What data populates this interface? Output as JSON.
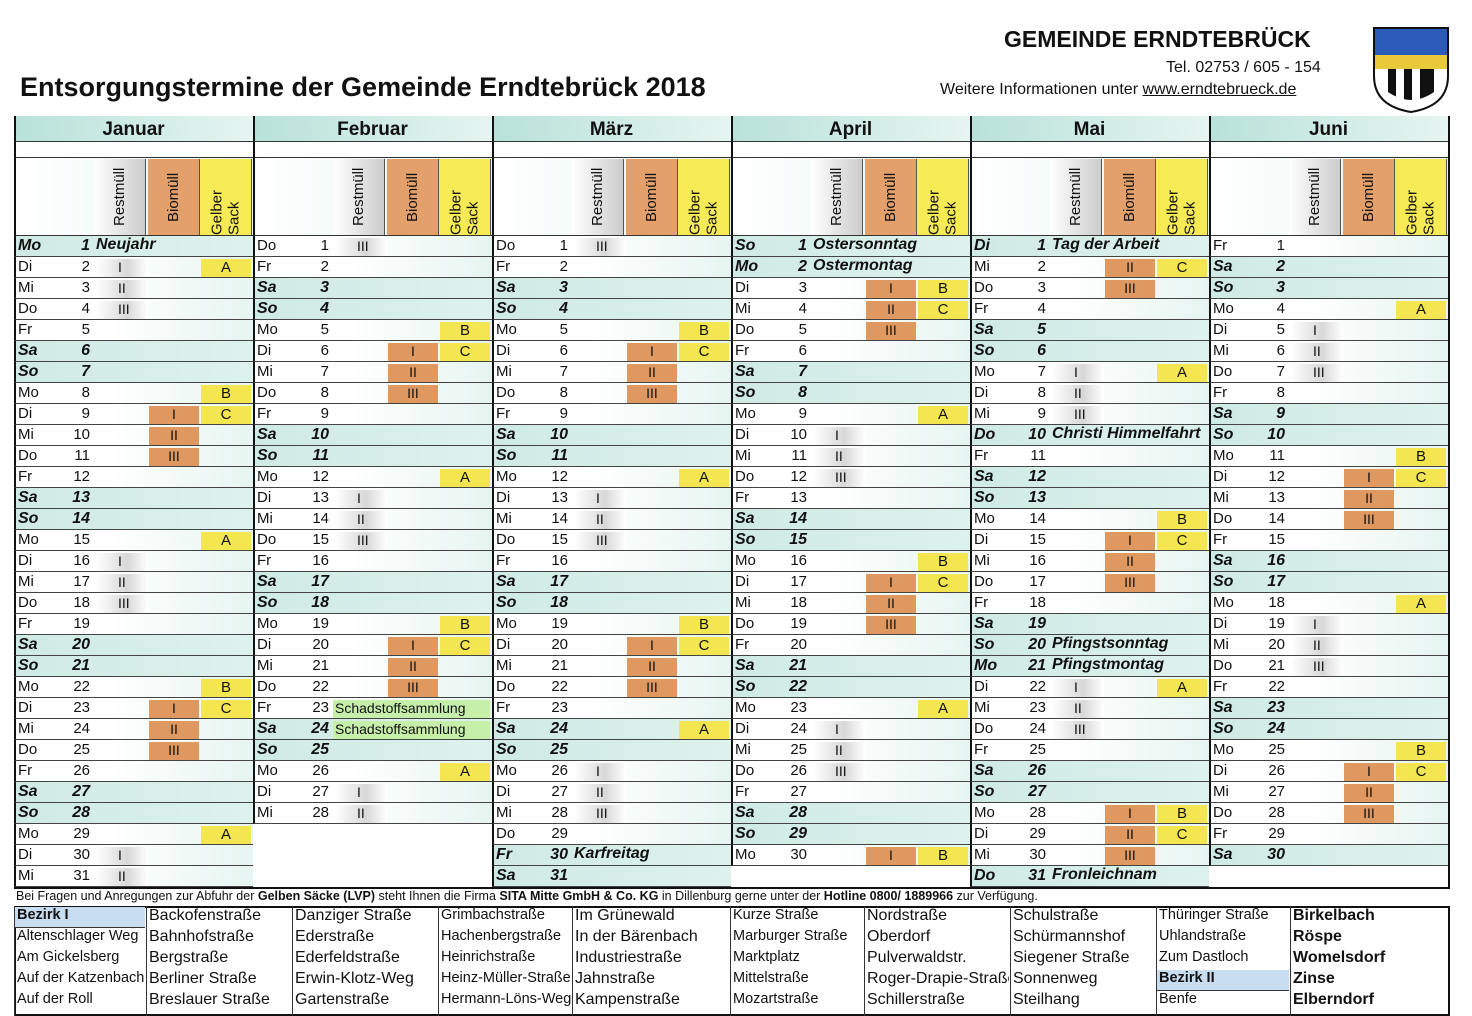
{
  "header": {
    "municipality": "GEMEINDE ERNDTEBRÜCK",
    "phone": "Tel. 02753 / 605 - 154",
    "info": "Weitere Informationen unter ",
    "website": "www.erndtebrueck.de"
  },
  "title": "Entsorgungstermine der Gemeinde Erndtebrück 2018",
  "column_headers": [
    "Restmüll",
    "Biomüll",
    "Gelber Sack"
  ],
  "months": [
    {
      "name": "Januar",
      "days": [
        [
          "Mo",
          1,
          null,
          null,
          null,
          "Neujahr"
        ],
        [
          "Di",
          2,
          "I",
          null,
          "A"
        ],
        [
          "Mi",
          3,
          "II"
        ],
        [
          "Do",
          4,
          "III"
        ],
        [
          "Fr",
          5
        ],
        [
          "Sa",
          6
        ],
        [
          "So",
          7
        ],
        [
          "Mo",
          8,
          null,
          null,
          "B"
        ],
        [
          "Di",
          9,
          null,
          "I",
          "C"
        ],
        [
          "Mi",
          10,
          null,
          "II"
        ],
        [
          "Do",
          11,
          null,
          "III"
        ],
        [
          "Fr",
          12
        ],
        [
          "Sa",
          13
        ],
        [
          "So",
          14
        ],
        [
          "Mo",
          15,
          null,
          null,
          "A"
        ],
        [
          "Di",
          16,
          "I"
        ],
        [
          "Mi",
          17,
          "II"
        ],
        [
          "Do",
          18,
          "III"
        ],
        [
          "Fr",
          19
        ],
        [
          "Sa",
          20
        ],
        [
          "So",
          21
        ],
        [
          "Mo",
          22,
          null,
          null,
          "B"
        ],
        [
          "Di",
          23,
          null,
          "I",
          "C"
        ],
        [
          "Mi",
          24,
          null,
          "II"
        ],
        [
          "Do",
          25,
          null,
          "III"
        ],
        [
          "Fr",
          26
        ],
        [
          "Sa",
          27
        ],
        [
          "So",
          28
        ],
        [
          "Mo",
          29,
          null,
          null,
          "A"
        ],
        [
          "Di",
          30,
          "I"
        ],
        [
          "Mi",
          31,
          "II"
        ]
      ]
    },
    {
      "name": "Februar",
      "days": [
        [
          "Do",
          1,
          "III"
        ],
        [
          "Fr",
          2
        ],
        [
          "Sa",
          3
        ],
        [
          "So",
          4
        ],
        [
          "Mo",
          5,
          null,
          null,
          "B"
        ],
        [
          "Di",
          6,
          null,
          "I",
          "C"
        ],
        [
          "Mi",
          7,
          null,
          "II"
        ],
        [
          "Do",
          8,
          null,
          "III"
        ],
        [
          "Fr",
          9
        ],
        [
          "Sa",
          10
        ],
        [
          "So",
          11
        ],
        [
          "Mo",
          12,
          null,
          null,
          "A"
        ],
        [
          "Di",
          13,
          "I"
        ],
        [
          "Mi",
          14,
          "II"
        ],
        [
          "Do",
          15,
          "III"
        ],
        [
          "Fr",
          16
        ],
        [
          "Sa",
          17
        ],
        [
          "So",
          18
        ],
        [
          "Mo",
          19,
          null,
          null,
          "B"
        ],
        [
          "Di",
          20,
          null,
          "I",
          "C"
        ],
        [
          "Mi",
          21,
          null,
          "II"
        ],
        [
          "Do",
          22,
          null,
          "III"
        ],
        [
          "Fr",
          23,
          null,
          null,
          null,
          null,
          "Schadstoffsammlung"
        ],
        [
          "Sa",
          24,
          null,
          null,
          null,
          null,
          "Schadstoffsammlung"
        ],
        [
          "So",
          25
        ],
        [
          "Mo",
          26,
          null,
          null,
          "A"
        ],
        [
          "Di",
          27,
          "I"
        ],
        [
          "Mi",
          28,
          "II"
        ]
      ]
    },
    {
      "name": "März",
      "days": [
        [
          "Do",
          1,
          "III"
        ],
        [
          "Fr",
          2
        ],
        [
          "Sa",
          3
        ],
        [
          "So",
          4
        ],
        [
          "Mo",
          5,
          null,
          null,
          "B"
        ],
        [
          "Di",
          6,
          null,
          "I",
          "C"
        ],
        [
          "Mi",
          7,
          null,
          "II"
        ],
        [
          "Do",
          8,
          null,
          "III"
        ],
        [
          "Fr",
          9
        ],
        [
          "Sa",
          10
        ],
        [
          "So",
          11
        ],
        [
          "Mo",
          12,
          null,
          null,
          "A"
        ],
        [
          "Di",
          13,
          "I"
        ],
        [
          "Mi",
          14,
          "II"
        ],
        [
          "Do",
          15,
          "III"
        ],
        [
          "Fr",
          16
        ],
        [
          "Sa",
          17
        ],
        [
          "So",
          18
        ],
        [
          "Mo",
          19,
          null,
          null,
          "B"
        ],
        [
          "Di",
          20,
          null,
          "I",
          "C"
        ],
        [
          "Mi",
          21,
          null,
          "II"
        ],
        [
          "Do",
          22,
          null,
          "III"
        ],
        [
          "Fr",
          23
        ],
        [
          "Sa",
          24,
          null,
          null,
          "A"
        ],
        [
          "So",
          25
        ],
        [
          "Mo",
          26,
          "I"
        ],
        [
          "Di",
          27,
          "II"
        ],
        [
          "Mi",
          28,
          "III"
        ],
        [
          "Do",
          29
        ],
        [
          "Fr",
          30,
          null,
          null,
          null,
          "Karfreitag"
        ],
        [
          "Sa",
          31
        ]
      ]
    },
    {
      "name": "April",
      "days": [
        [
          "So",
          1,
          null,
          null,
          null,
          "Ostersonntag"
        ],
        [
          "Mo",
          2,
          null,
          null,
          null,
          "Ostermontag"
        ],
        [
          "Di",
          3,
          null,
          "I",
          "B"
        ],
        [
          "Mi",
          4,
          null,
          "II",
          "C"
        ],
        [
          "Do",
          5,
          null,
          "III"
        ],
        [
          "Fr",
          6
        ],
        [
          "Sa",
          7
        ],
        [
          "So",
          8
        ],
        [
          "Mo",
          9,
          null,
          null,
          "A"
        ],
        [
          "Di",
          10,
          "I"
        ],
        [
          "Mi",
          11,
          "II"
        ],
        [
          "Do",
          12,
          "III"
        ],
        [
          "Fr",
          13
        ],
        [
          "Sa",
          14
        ],
        [
          "So",
          15
        ],
        [
          "Mo",
          16,
          null,
          null,
          "B"
        ],
        [
          "Di",
          17,
          null,
          "I",
          "C"
        ],
        [
          "Mi",
          18,
          null,
          "II"
        ],
        [
          "Do",
          19,
          null,
          "III"
        ],
        [
          "Fr",
          20
        ],
        [
          "Sa",
          21
        ],
        [
          "So",
          22
        ],
        [
          "Mo",
          23,
          null,
          null,
          "A"
        ],
        [
          "Di",
          24,
          "I"
        ],
        [
          "Mi",
          25,
          "II"
        ],
        [
          "Do",
          26,
          "III"
        ],
        [
          "Fr",
          27
        ],
        [
          "Sa",
          28
        ],
        [
          "So",
          29
        ],
        [
          "Mo",
          30,
          null,
          "I",
          "B"
        ]
      ]
    },
    {
      "name": "Mai",
      "days": [
        [
          "Di",
          1,
          null,
          null,
          null,
          "Tag der Arbeit"
        ],
        [
          "Mi",
          2,
          null,
          "II",
          "C"
        ],
        [
          "Do",
          3,
          null,
          "III"
        ],
        [
          "Fr",
          4
        ],
        [
          "Sa",
          5
        ],
        [
          "So",
          6
        ],
        [
          "Mo",
          7,
          "I",
          null,
          "A"
        ],
        [
          "Di",
          8,
          "II"
        ],
        [
          "Mi",
          9,
          "III"
        ],
        [
          "Do",
          10,
          null,
          null,
          null,
          "Christi Himmelfahrt"
        ],
        [
          "Fr",
          11
        ],
        [
          "Sa",
          12
        ],
        [
          "So",
          13
        ],
        [
          "Mo",
          14,
          null,
          null,
          "B"
        ],
        [
          "Di",
          15,
          null,
          "I",
          "C"
        ],
        [
          "Mi",
          16,
          null,
          "II"
        ],
        [
          "Do",
          17,
          null,
          "III"
        ],
        [
          "Fr",
          18
        ],
        [
          "Sa",
          19
        ],
        [
          "So",
          20,
          null,
          null,
          null,
          "Pfingstsonntag"
        ],
        [
          "Mo",
          21,
          null,
          null,
          null,
          "Pfingstmontag"
        ],
        [
          "Di",
          22,
          "I",
          null,
          "A"
        ],
        [
          "Mi",
          23,
          "II"
        ],
        [
          "Do",
          24,
          "III"
        ],
        [
          "Fr",
          25
        ],
        [
          "Sa",
          26
        ],
        [
          "So",
          27
        ],
        [
          "Mo",
          28,
          null,
          "I",
          "B"
        ],
        [
          "Di",
          29,
          null,
          "II",
          "C"
        ],
        [
          "Mi",
          30,
          null,
          "III"
        ],
        [
          "Do",
          31,
          null,
          null,
          null,
          "Fronleichnam"
        ]
      ]
    },
    {
      "name": "Juni",
      "days": [
        [
          "Fr",
          1
        ],
        [
          "Sa",
          2
        ],
        [
          "So",
          3
        ],
        [
          "Mo",
          4,
          null,
          null,
          "A"
        ],
        [
          "Di",
          5,
          "I"
        ],
        [
          "Mi",
          6,
          "II"
        ],
        [
          "Do",
          7,
          "III"
        ],
        [
          "Fr",
          8
        ],
        [
          "Sa",
          9
        ],
        [
          "So",
          10
        ],
        [
          "Mo",
          11,
          null,
          null,
          "B"
        ],
        [
          "Di",
          12,
          null,
          "I",
          "C"
        ],
        [
          "Mi",
          13,
          null,
          "II"
        ],
        [
          "Do",
          14,
          null,
          "III"
        ],
        [
          "Fr",
          15
        ],
        [
          "Sa",
          16
        ],
        [
          "So",
          17
        ],
        [
          "Mo",
          18,
          null,
          null,
          "A"
        ],
        [
          "Di",
          19,
          "I"
        ],
        [
          "Mi",
          20,
          "II"
        ],
        [
          "Do",
          21,
          "III"
        ],
        [
          "Fr",
          22
        ],
        [
          "Sa",
          23
        ],
        [
          "So",
          24
        ],
        [
          "Mo",
          25,
          null,
          null,
          "B"
        ],
        [
          "Di",
          26,
          null,
          "I",
          "C"
        ],
        [
          "Mi",
          27,
          null,
          "II"
        ],
        [
          "Do",
          28,
          null,
          "III"
        ],
        [
          "Fr",
          29
        ],
        [
          "Sa",
          30
        ]
      ]
    }
  ],
  "footer": {
    "segments": [
      {
        "text": "Bei Fragen und Anregungen zur Abfuhr der ",
        "bold": false
      },
      {
        "text": "Gelben Säcke (LVP)",
        "bold": true
      },
      {
        "text": " steht Ihnen die Firma ",
        "bold": false
      },
      {
        "text": "SITA Mitte GmbH & Co. KG",
        "bold": true
      },
      {
        "text": " in Dillenburg gerne unter der ",
        "bold": false
      },
      {
        "text": "Hotline 0800/ 1889966",
        "bold": true
      },
      {
        "text": " zur Verfügung.",
        "bold": false
      }
    ]
  },
  "streets": {
    "columns": [
      {
        "bold": false,
        "items": [
          {
            "text": "Bezirk I",
            "district": true
          },
          "Altenschlager Weg",
          "Am Gickelsberg",
          "Auf der Katzenbach",
          "Auf der Roll"
        ]
      },
      {
        "bold": false,
        "items": [
          "Backofenstraße",
          "Bahnhofstraße",
          "Bergstraße",
          "Berliner Straße",
          "Breslauer Straße"
        ]
      },
      {
        "bold": false,
        "items": [
          "Danziger Straße",
          "Ederstraße",
          "Ederfeldstraße",
          "Erwin-Klotz-Weg",
          "Gartenstraße"
        ]
      },
      {
        "bold": false,
        "items": [
          "Grimbachstraße",
          "Hachenbergstraße",
          "Heinrichstraße",
          "Heinz-Müller-Straße",
          "Hermann-Löns-Weg"
        ]
      },
      {
        "bold": false,
        "items": [
          "Im Grünewald",
          "In der Bärenbach",
          "Industriestraße",
          "Jahnstraße",
          "Kampenstraße"
        ]
      },
      {
        "bold": false,
        "items": [
          "Kurze Straße",
          "Marburger Straße",
          "Marktplatz",
          "Mittelstraße",
          "Mozartstraße"
        ]
      },
      {
        "bold": false,
        "items": [
          "Nordstraße",
          "Oberdorf",
          "Pulverwaldstr.",
          "Roger-Drapie-Straße",
          "Schillerstraße"
        ]
      },
      {
        "bold": false,
        "items": [
          "Schulstraße",
          "Schürmannshof",
          "Siegener Straße",
          "Sonnenweg",
          "Steilhang"
        ]
      },
      {
        "bold": false,
        "items": [
          "Thüringer Straße",
          "Uhlandstraße",
          "Zum Dastloch",
          {
            "text": "Bezirk II",
            "district": true
          },
          "Benfe"
        ]
      },
      {
        "bold": true,
        "items": [
          "Birkelbach",
          "Röspe",
          "Womelsdorf",
          "Zinse",
          "Elberndorf"
        ]
      }
    ]
  }
}
